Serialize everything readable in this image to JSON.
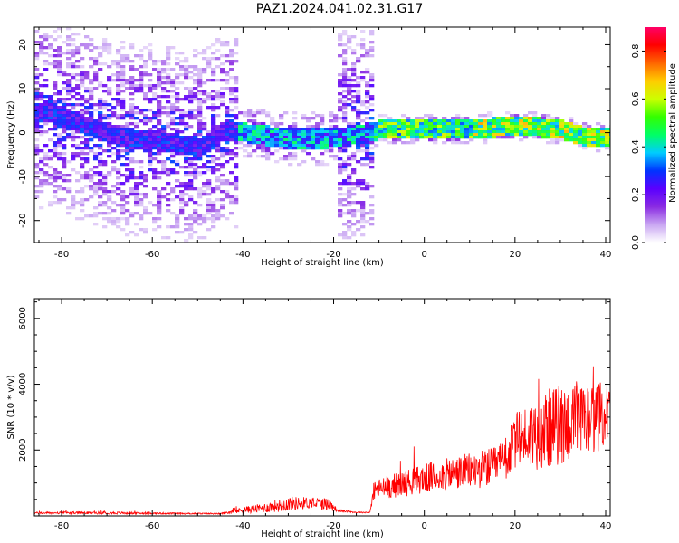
{
  "figure_title": "PAZ1.2024.041.02.31.G17",
  "chart_data": [
    {
      "type": "heatmap",
      "title": "",
      "xlabel": "Height of straight line (km)",
      "ylabel": "Frequency (Hz)",
      "xlim": [
        -86,
        41
      ],
      "ylim": [
        -25,
        24
      ],
      "x_ticks": [
        -80,
        -60,
        -40,
        -20,
        0,
        20,
        40
      ],
      "y_ticks": [
        -20,
        -10,
        0,
        10,
        20
      ],
      "colorbar": {
        "label": "Normalized spectral amplitude",
        "range": [
          0,
          0.9
        ],
        "ticks": [
          0.0,
          0.2,
          0.4,
          0.6,
          0.8
        ],
        "colormap": [
          "#ffffff",
          "#c9a6f2",
          "#8a2be2",
          "#5a00ff",
          "#0033ff",
          "#00ccff",
          "#00ff66",
          "#33ff00",
          "#ccff00",
          "#ffcc00",
          "#ff6600",
          "#ff0000",
          "#ff0066"
        ]
      },
      "ridge": {
        "description_free": true,
        "frequency_vs_height": [
          [
            -84,
            5
          ],
          [
            -78,
            3
          ],
          [
            -72,
            1
          ],
          [
            -66,
            -1
          ],
          [
            -60,
            -1.5
          ],
          [
            -50,
            -3
          ],
          [
            -44,
            1
          ],
          [
            -38,
            0
          ],
          [
            -30,
            -1
          ],
          [
            -22,
            -1
          ],
          [
            -14,
            0
          ],
          [
            -10,
            1
          ],
          [
            0,
            1
          ],
          [
            10,
            1
          ],
          [
            20,
            2
          ],
          [
            30,
            1
          ],
          [
            35,
            -0.5
          ],
          [
            40,
            -0.5
          ]
        ],
        "peak_amplitude_region": [
          -10,
          40
        ]
      }
    },
    {
      "type": "line",
      "title": "",
      "xlabel": "Height of straight line (km)",
      "ylabel": "SNR (10 * v/v)",
      "xlim": [
        -86,
        41
      ],
      "ylim": [
        0,
        6600
      ],
      "x_ticks": [
        -80,
        -60,
        -40,
        -20,
        0,
        20,
        40
      ],
      "y_ticks": [
        2000,
        4000,
        6000
      ],
      "color": "#ff0000",
      "envelope": {
        "x": [
          -86,
          -70,
          -60,
          -45,
          -40,
          -35,
          -30,
          -25,
          -21,
          -19,
          -15,
          -12,
          -11,
          -5,
          0,
          5,
          10,
          15,
          18,
          20,
          25,
          30,
          35,
          40
        ],
        "base": [
          80,
          80,
          70,
          60,
          150,
          200,
          300,
          350,
          300,
          150,
          100,
          100,
          700,
          850,
          1000,
          1100,
          1200,
          1300,
          1500,
          2000,
          2200,
          2400,
          2500,
          2800
        ],
        "amp": [
          60,
          80,
          50,
          40,
          200,
          300,
          450,
          350,
          400,
          60,
          40,
          40,
          600,
          800,
          900,
          1000,
          1100,
          1200,
          1300,
          1700,
          2300,
          2500,
          2300,
          2000
        ]
      }
    }
  ]
}
